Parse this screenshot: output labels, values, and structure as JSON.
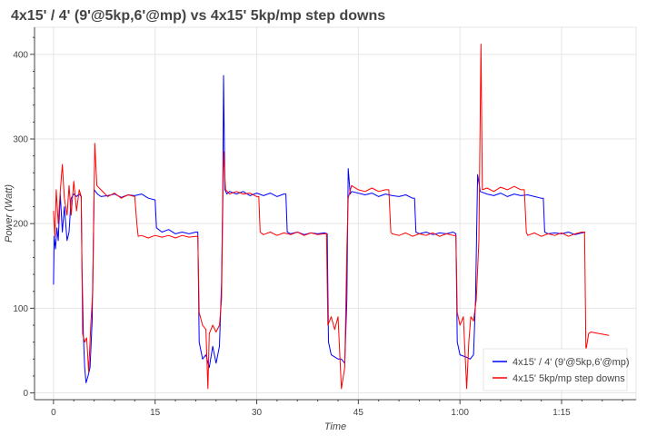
{
  "chart_data": {
    "type": "line",
    "title": "4x15' / 4' (9'@5kp,6'@mp) vs 4x15' 5kp/mp step downs",
    "xlabel": "Time",
    "ylabel": "Power (Watt)",
    "xlim": [
      -2.8,
      86
    ],
    "ylim": [
      -8,
      432
    ],
    "x_ticks": [
      {
        "value": 0,
        "label": "0"
      },
      {
        "value": 15,
        "label": "15"
      },
      {
        "value": 30,
        "label": "30"
      },
      {
        "value": 45,
        "label": "45"
      },
      {
        "value": 60,
        "label": "1:00"
      },
      {
        "value": 75,
        "label": "1:15"
      }
    ],
    "y_ticks": [
      0,
      100,
      200,
      300,
      400
    ],
    "grid": true,
    "legend_position": "bottom-right",
    "series": [
      {
        "name": "4x15' / 4' (9'@5kp,6'@mp)",
        "color": "#0000ff",
        "points": [
          [
            0,
            128
          ],
          [
            0.1,
            185
          ],
          [
            0.3,
            170
          ],
          [
            0.5,
            195
          ],
          [
            0.7,
            180
          ],
          [
            1,
            235
          ],
          [
            1.3,
            190
          ],
          [
            1.6,
            220
          ],
          [
            2,
            180
          ],
          [
            2.3,
            190
          ],
          [
            2.6,
            230
          ],
          [
            3,
            235
          ],
          [
            3.4,
            232
          ],
          [
            3.8,
            235
          ],
          [
            4.1,
            232
          ],
          [
            4.2,
            150
          ],
          [
            4.4,
            70
          ],
          [
            4.6,
            30
          ],
          [
            4.8,
            12
          ],
          [
            5.1,
            20
          ],
          [
            5.4,
            30
          ],
          [
            5.7,
            85
          ],
          [
            6,
            240
          ],
          [
            6.5,
            235
          ],
          [
            7,
            232
          ],
          [
            8,
            233
          ],
          [
            9,
            235
          ],
          [
            10,
            231
          ],
          [
            11,
            234
          ],
          [
            12,
            233
          ],
          [
            13,
            235
          ],
          [
            14,
            230
          ],
          [
            15,
            228
          ],
          [
            15.2,
            195
          ],
          [
            16,
            190
          ],
          [
            17,
            193
          ],
          [
            18,
            188
          ],
          [
            19,
            190
          ],
          [
            20,
            188
          ],
          [
            21,
            190
          ],
          [
            21.3,
            190
          ],
          [
            21.5,
            60
          ],
          [
            22,
            40
          ],
          [
            22.5,
            45
          ],
          [
            23,
            30
          ],
          [
            23.5,
            55
          ],
          [
            24,
            35
          ],
          [
            24.5,
            55
          ],
          [
            24.8,
            130
          ],
          [
            25,
            240
          ],
          [
            25.1,
            375
          ],
          [
            25.3,
            240
          ],
          [
            25.6,
            235
          ],
          [
            26,
            238
          ],
          [
            27,
            235
          ],
          [
            28,
            238
          ],
          [
            29,
            233
          ],
          [
            30,
            236
          ],
          [
            31,
            233
          ],
          [
            32,
            236
          ],
          [
            33,
            232
          ],
          [
            34,
            235
          ],
          [
            34.3,
            235
          ],
          [
            34.5,
            190
          ],
          [
            35,
            188
          ],
          [
            36,
            190
          ],
          [
            37,
            187
          ],
          [
            38,
            189
          ],
          [
            39,
            188
          ],
          [
            40,
            189
          ],
          [
            40.4,
            188
          ],
          [
            40.6,
            60
          ],
          [
            41,
            45
          ],
          [
            42,
            40
          ],
          [
            42.5,
            40
          ],
          [
            43,
            35
          ],
          [
            43.3,
            110
          ],
          [
            43.5,
            265
          ],
          [
            43.8,
            235
          ],
          [
            44,
            238
          ],
          [
            45,
            236
          ],
          [
            46,
            234
          ],
          [
            47,
            236
          ],
          [
            48,
            232
          ],
          [
            49,
            235
          ],
          [
            50,
            233
          ],
          [
            51,
            232
          ],
          [
            52,
            234
          ],
          [
            53,
            230
          ],
          [
            53.3,
            230
          ],
          [
            53.5,
            190
          ],
          [
            54,
            188
          ],
          [
            55,
            190
          ],
          [
            56,
            187
          ],
          [
            57,
            189
          ],
          [
            58,
            188
          ],
          [
            59,
            190
          ],
          [
            59.4,
            188
          ],
          [
            59.6,
            60
          ],
          [
            60,
            45
          ],
          [
            61,
            42
          ],
          [
            61.5,
            40
          ],
          [
            62,
            45
          ],
          [
            62.3,
            110
          ],
          [
            62.6,
            258
          ],
          [
            63,
            238
          ],
          [
            64,
            235
          ],
          [
            65,
            233
          ],
          [
            66,
            236
          ],
          [
            67,
            232
          ],
          [
            68,
            235
          ],
          [
            69,
            233
          ],
          [
            70,
            234
          ],
          [
            71,
            232
          ],
          [
            72,
            230
          ],
          [
            72.3,
            230
          ],
          [
            72.5,
            190
          ],
          [
            73,
            188
          ],
          [
            74,
            189
          ],
          [
            75,
            188
          ],
          [
            76,
            190
          ],
          [
            77,
            187
          ],
          [
            78,
            189
          ],
          [
            78.5,
            190
          ]
        ]
      },
      {
        "name": "4x15' 5kp/mp step downs",
        "color": "#ff0000",
        "points": [
          [
            0,
            215
          ],
          [
            0.2,
            185
          ],
          [
            0.4,
            240
          ],
          [
            0.7,
            200
          ],
          [
            1,
            238
          ],
          [
            1.3,
            270
          ],
          [
            1.6,
            230
          ],
          [
            2,
            210
          ],
          [
            2.3,
            245
          ],
          [
            2.6,
            210
          ],
          [
            3,
            250
          ],
          [
            3.4,
            215
          ],
          [
            3.8,
            240
          ],
          [
            4.1,
            232
          ],
          [
            4.3,
            70
          ],
          [
            4.6,
            60
          ],
          [
            4.9,
            65
          ],
          [
            5.2,
            25
          ],
          [
            5.5,
            80
          ],
          [
            5.8,
            120
          ],
          [
            6.1,
            295
          ],
          [
            6.4,
            245
          ],
          [
            7,
            240
          ],
          [
            8,
            232
          ],
          [
            9,
            236
          ],
          [
            10,
            230
          ],
          [
            11,
            234
          ],
          [
            12,
            232
          ],
          [
            12.3,
            200
          ],
          [
            12.5,
            185
          ],
          [
            13,
            186
          ],
          [
            14,
            183
          ],
          [
            15,
            186
          ],
          [
            16,
            184
          ],
          [
            17,
            186
          ],
          [
            18,
            183
          ],
          [
            19,
            186
          ],
          [
            20,
            184
          ],
          [
            21,
            185
          ],
          [
            21.3,
            185
          ],
          [
            21.5,
            95
          ],
          [
            22,
            80
          ],
          [
            22.5,
            75
          ],
          [
            22.8,
            5
          ],
          [
            23,
            70
          ],
          [
            23.5,
            80
          ],
          [
            24,
            72
          ],
          [
            24.5,
            80
          ],
          [
            24.8,
            110
          ],
          [
            25.1,
            285
          ],
          [
            25.4,
            240
          ],
          [
            26,
            235
          ],
          [
            27,
            238
          ],
          [
            28,
            235
          ],
          [
            29,
            236
          ],
          [
            30,
            232
          ],
          [
            30.3,
            232
          ],
          [
            30.5,
            190
          ],
          [
            31,
            187
          ],
          [
            32,
            190
          ],
          [
            33,
            186
          ],
          [
            34,
            189
          ],
          [
            35,
            187
          ],
          [
            36,
            190
          ],
          [
            37,
            186
          ],
          [
            38,
            189
          ],
          [
            39,
            187
          ],
          [
            40,
            188
          ],
          [
            40.3,
            188
          ],
          [
            40.5,
            80
          ],
          [
            41,
            90
          ],
          [
            41.5,
            75
          ],
          [
            42,
            90
          ],
          [
            42.5,
            5
          ],
          [
            43,
            30
          ],
          [
            43.3,
            170
          ],
          [
            43.5,
            230
          ],
          [
            44,
            245
          ],
          [
            45,
            240
          ],
          [
            46,
            238
          ],
          [
            47,
            242
          ],
          [
            48,
            238
          ],
          [
            49,
            240
          ],
          [
            49.5,
            240
          ],
          [
            49.8,
            190
          ],
          [
            50,
            188
          ],
          [
            51,
            186
          ],
          [
            52,
            189
          ],
          [
            53,
            185
          ],
          [
            54,
            188
          ],
          [
            55,
            186
          ],
          [
            56,
            189
          ],
          [
            57,
            185
          ],
          [
            58,
            188
          ],
          [
            59,
            186
          ],
          [
            59.4,
            186
          ],
          [
            59.6,
            95
          ],
          [
            60,
            80
          ],
          [
            60.5,
            90
          ],
          [
            61,
            5
          ],
          [
            61.3,
            60
          ],
          [
            61.6,
            90
          ],
          [
            62,
            85
          ],
          [
            62.4,
            110
          ],
          [
            62.8,
            180
          ],
          [
            63.1,
            412
          ],
          [
            63.3,
            240
          ],
          [
            64,
            242
          ],
          [
            65,
            238
          ],
          [
            66,
            243
          ],
          [
            67,
            240
          ],
          [
            68,
            244
          ],
          [
            69,
            240
          ],
          [
            69.5,
            240
          ],
          [
            69.8,
            190
          ],
          [
            70,
            186
          ],
          [
            71,
            189
          ],
          [
            72,
            185
          ],
          [
            73,
            188
          ],
          [
            74,
            186
          ],
          [
            75,
            189
          ],
          [
            76,
            185
          ],
          [
            77,
            188
          ],
          [
            78,
            190
          ],
          [
            78.4,
            190
          ],
          [
            78.6,
            50
          ],
          [
            79,
            70
          ],
          [
            79.3,
            72
          ],
          [
            82,
            68
          ]
        ]
      }
    ]
  }
}
